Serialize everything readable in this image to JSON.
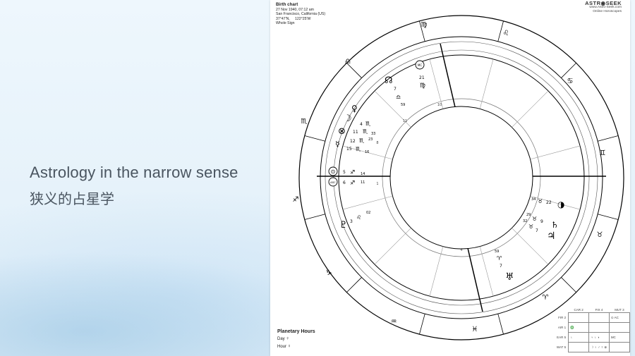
{
  "slide": {
    "title_en": "Astrology in the narrow sense",
    "title_zh": "狭义的占星学"
  },
  "chart_header": {
    "title": "Birth chart",
    "date": "27 Nov 1940, 07:12 am",
    "place": "San Francisco, California (US)",
    "coords": "37°47'N,     122°25'W",
    "house_system": "Whole Sign"
  },
  "brand": {
    "logo": "ASTR◉SEEK",
    "url": "www.Astro-Seek.com",
    "tagline": "Online Horoscopes"
  },
  "planetary_hours": {
    "title": "Planetary Hours",
    "day_label": "Day",
    "day_symbol": "☿",
    "hour_label": "Hour",
    "hour_symbol": "☿"
  },
  "element_table": {
    "col_headers": [
      "CAR 2",
      "FIX 4",
      "MUT 3"
    ],
    "rows": [
      {
        "label": "FIR 2",
        "cells": [
          "",
          "",
          "⊙ AC"
        ]
      },
      {
        "label": "AIR 1",
        "cells": [
          "♎",
          "",
          ""
        ]
      },
      {
        "label": "EAR 5",
        "cells": [
          "♄",
          "♃ ♄ ◑",
          "MC"
        ]
      },
      {
        "label": "WAT 5",
        "cells": [
          "",
          "☽ ♀ ♂ ☿ ⊗",
          ""
        ]
      }
    ]
  },
  "zodiac_signs": {
    "sagittarius": "♐",
    "scorpio": "♏",
    "libra": "♎",
    "virgo": "♍",
    "leo": "♌",
    "cancer": "♋",
    "gemini": "♊",
    "taurus": "♉",
    "aries": "♈",
    "pisces": "♓",
    "aquarius": "♒",
    "capricorn": "♑"
  },
  "planets": {
    "node": {
      "symbol": "☊",
      "deg": "7"
    },
    "libra_tag": {
      "symbol": "♎",
      "deg": "59"
    },
    "mc": {
      "symbol": "MC",
      "deg": "21",
      "sign": "♍"
    },
    "venus": {
      "symbol": "♀",
      "deg": "4",
      "sign": "♏"
    },
    "moon": {
      "symbol": "☽",
      "deg": "11",
      "sign": "♏",
      "min": "33"
    },
    "mars": {
      "symbol": "♂",
      "deg": "12",
      "sign": "♏",
      "min": "23"
    },
    "fortune": {
      "symbol": "⊗",
      "deg": "12",
      "sign": "♏"
    },
    "mercury": {
      "symbol": "☿",
      "deg": "15",
      "sign": "♏",
      "min": "16"
    },
    "sun": {
      "symbol": "⊙",
      "deg": "5",
      "sign": "♐",
      "min": "14"
    },
    "asc": {
      "symbol": "ASC",
      "deg": "6",
      "sign": "♐",
      "min": "11"
    },
    "pluto": {
      "symbol": "♇",
      "deg": "3",
      "sign": "♌",
      "min": "02"
    },
    "lilith": {
      "symbol": "◑",
      "deg": "22",
      "sign": "♉",
      "min": "34"
    },
    "saturn": {
      "symbol": "♄",
      "deg": "9",
      "sign": "♉",
      "min": "29"
    },
    "jupiter": {
      "symbol": "♃",
      "deg": "7",
      "sign": "♉",
      "min": "32"
    },
    "uranus": {
      "symbol": "♅",
      "deg": "7",
      "sign": "♈",
      "min": "59"
    },
    "inner_labels": [
      "10",
      "11",
      "8",
      "1"
    ],
    "misc_labels": [
      "21",
      "10",
      "14",
      "11",
      "4"
    ]
  }
}
